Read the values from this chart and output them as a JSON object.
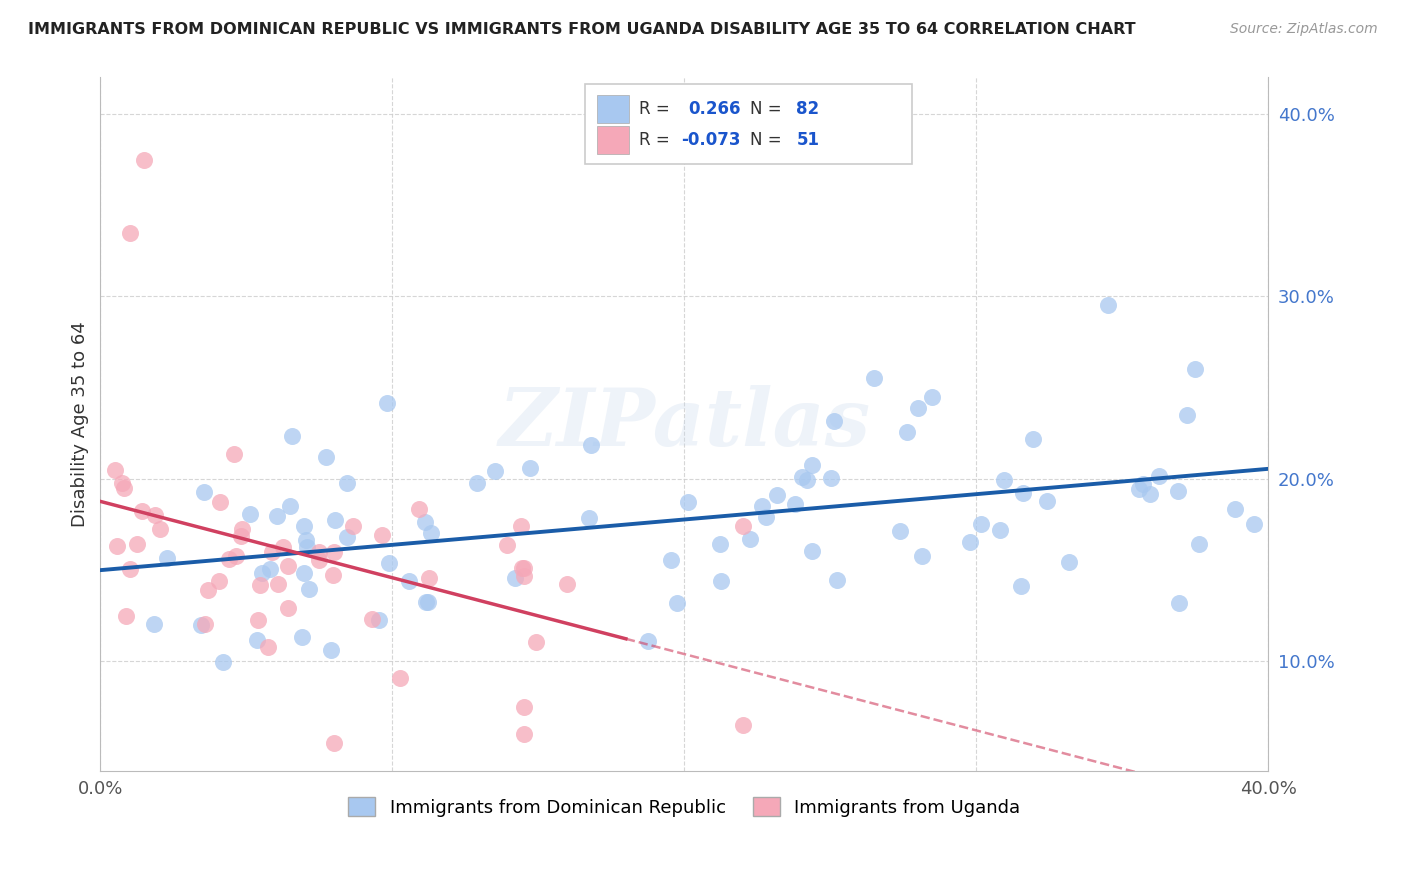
{
  "title": "IMMIGRANTS FROM DOMINICAN REPUBLIC VS IMMIGRANTS FROM UGANDA DISABILITY AGE 35 TO 64 CORRELATION CHART",
  "source": "Source: ZipAtlas.com",
  "ylabel": "Disability Age 35 to 64",
  "xlim": [
    0.0,
    0.4
  ],
  "ylim": [
    0.04,
    0.42
  ],
  "legend1_label": "Immigrants from Dominican Republic",
  "legend2_label": "Immigrants from Uganda",
  "r1": 0.266,
  "n1": 82,
  "r2": -0.073,
  "n2": 51,
  "color_blue": "#A8C8F0",
  "color_pink": "#F5A8B8",
  "line_blue": "#1A5CA8",
  "line_pink": "#D04060",
  "watermark": "ZIPatlas"
}
